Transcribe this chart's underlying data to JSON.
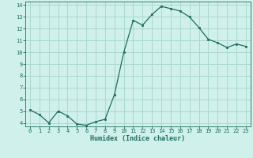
{
  "x": [
    0,
    1,
    2,
    3,
    4,
    5,
    6,
    7,
    8,
    9,
    10,
    11,
    12,
    13,
    14,
    15,
    16,
    17,
    18,
    19,
    20,
    21,
    22,
    23
  ],
  "y": [
    5.1,
    4.7,
    4.0,
    5.0,
    4.6,
    3.9,
    3.8,
    4.1,
    4.3,
    6.4,
    10.0,
    12.7,
    12.3,
    13.2,
    13.9,
    13.7,
    13.5,
    13.0,
    12.1,
    11.1,
    10.8,
    10.4,
    10.7,
    10.5
  ],
  "xlabel": "Humidex (Indice chaleur)",
  "ylabel": "",
  "xlim": [
    -0.5,
    23.5
  ],
  "ylim": [
    3.7,
    14.3
  ],
  "yticks": [
    4,
    5,
    6,
    7,
    8,
    9,
    10,
    11,
    12,
    13,
    14
  ],
  "xticks": [
    0,
    1,
    2,
    3,
    4,
    5,
    6,
    7,
    8,
    9,
    10,
    11,
    12,
    13,
    14,
    15,
    16,
    17,
    18,
    19,
    20,
    21,
    22,
    23
  ],
  "line_color": "#1e6e60",
  "marker_color": "#1e6e60",
  "bg_color": "#cff0eb",
  "grid_color": "#aad8d0",
  "text_color": "#1e6e60",
  "font_name": "monospace",
  "tick_fontsize": 5.0,
  "xlabel_fontsize": 6.0
}
